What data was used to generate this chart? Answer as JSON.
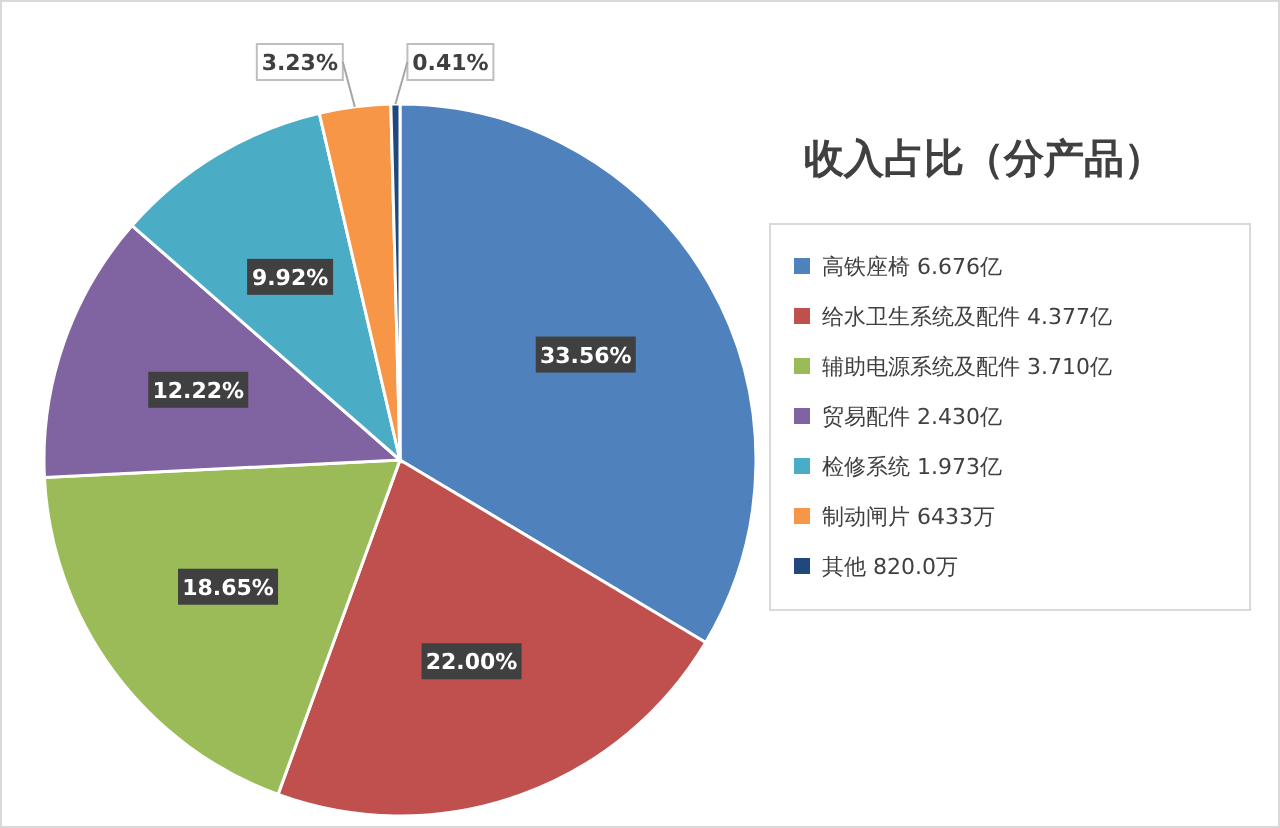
{
  "chart_data": {
    "type": "pie",
    "title": "收入占比（分产品）",
    "categories": [
      "高铁座椅 6.676亿",
      "给水卫生系统及配件 4.377亿",
      "辅助电源系统及配件 3.710亿",
      "贸易配件 2.430亿",
      "检修系统 1.973亿",
      "制动闸片 6433万",
      "其他 820.0万"
    ],
    "values": [
      33.56,
      22.0,
      18.65,
      12.22,
      9.92,
      3.23,
      0.41
    ],
    "colors": [
      "#4f81bd",
      "#c0504d",
      "#9bbb59",
      "#8064a2",
      "#4bacc6",
      "#f79646",
      "#1f497d"
    ],
    "value_labels": [
      "33.56%",
      "22.00%",
      "18.65%",
      "12.22%",
      "9.92%",
      "3.23%",
      "0.41%"
    ],
    "legend": "right"
  }
}
